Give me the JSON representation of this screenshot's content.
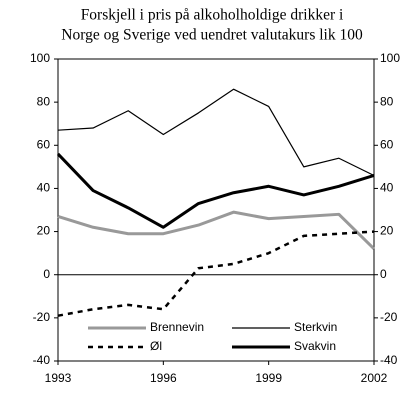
{
  "chart_data": {
    "type": "line",
    "title": [
      "Forskjell i pris på alkoholholdige drikker i",
      "Norge og Sverige ved uendret valutakurs lik 100"
    ],
    "x": [
      1993,
      1994,
      1995,
      1996,
      1997,
      1998,
      1999,
      2000,
      2001,
      2002
    ],
    "xlim": [
      1993,
      2002
    ],
    "xticks": [
      1993,
      1996,
      1999,
      2002
    ],
    "ylim": [
      -40,
      100
    ],
    "yticks": [
      -40,
      -20,
      0,
      20,
      40,
      60,
      80,
      100
    ],
    "y2lim": [
      -40,
      100
    ],
    "y2ticks": [
      -40,
      -20,
      0,
      20,
      40,
      60,
      80,
      100
    ],
    "series": [
      {
        "name": "Brennevin",
        "color": "#999999",
        "width": 3,
        "dash": false,
        "values": [
          27,
          22,
          19,
          19,
          23,
          29,
          26,
          27,
          28,
          12
        ]
      },
      {
        "name": "Sterkvin",
        "color": "#000000",
        "width": 1.2,
        "dash": false,
        "values": [
          67,
          68,
          76,
          65,
          75,
          86,
          78,
          50,
          54,
          46
        ]
      },
      {
        "name": "Øl",
        "color": "#000000",
        "width": 2.5,
        "dash": true,
        "values": [
          -19,
          -16,
          -14,
          -16,
          3,
          5,
          10,
          18,
          19,
          20
        ]
      },
      {
        "name": "Svakvin",
        "color": "#000000",
        "width": 3,
        "dash": false,
        "values": [
          56,
          39,
          31,
          22,
          33,
          38,
          41,
          37,
          41,
          46
        ]
      }
    ],
    "legend": "lower center"
  }
}
